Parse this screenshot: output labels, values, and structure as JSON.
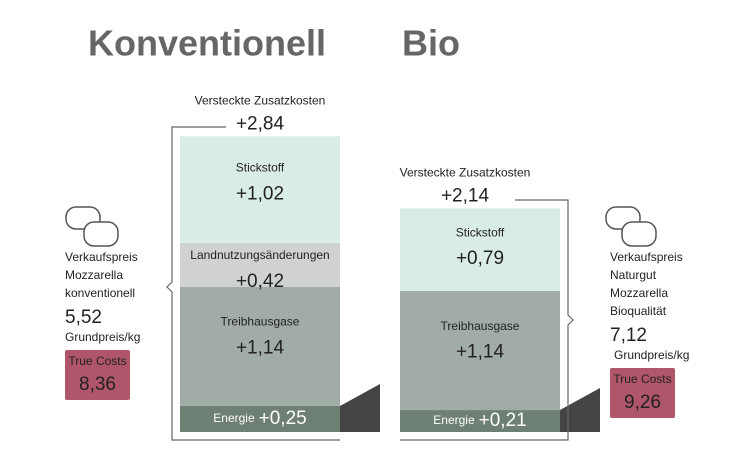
{
  "chart_data": {
    "type": "stacked-bar",
    "categories": [
      "Konventionell",
      "Bio"
    ],
    "series": [
      {
        "name": "Energie",
        "color": "#6e7f74",
        "values": [
          0.25,
          0.21
        ],
        "value_labels": [
          "+0,25",
          "+0,21"
        ]
      },
      {
        "name": "Treibhausgase",
        "color": "#a2aca6",
        "values": [
          1.14,
          1.14
        ],
        "value_labels": [
          "+1,14",
          "+1,14"
        ]
      },
      {
        "name": "Landnutzungsänderungen",
        "color": "#d0d2cf",
        "values": [
          0.42,
          null
        ],
        "value_labels": [
          "+0,42",
          null
        ]
      },
      {
        "name": "Stickstoff",
        "color": "#d9ede5",
        "values": [
          1.02,
          0.79
        ],
        "value_labels": [
          "+1,02",
          "+0,79"
        ]
      }
    ],
    "hidden_costs": {
      "label": "Versteckte Zusatzkosten",
      "values": [
        2.84,
        2.14
      ],
      "value_labels": [
        "+2,84",
        "+2,14"
      ]
    }
  },
  "panels": [
    {
      "lines": [
        "Verkaufspreis",
        "Mozzarella",
        "konventionell"
      ],
      "price": {
        "value": 5.52,
        "label": "5,52"
      },
      "unit": "Grundpreis/kg",
      "true_costs_label": "True Costs",
      "true_costs": {
        "value": 8.36,
        "label": "8,36"
      }
    },
    {
      "lines": [
        "Verkaufspreis",
        "Naturgut",
        "Mozzarella",
        "Bioqualität"
      ],
      "price": {
        "value": 7.12,
        "label": "7,12"
      },
      "unit": "Grundpreis/kg",
      "true_costs_label": "True Costs",
      "true_costs": {
        "value": 9.26,
        "label": "9,26"
      }
    }
  ]
}
